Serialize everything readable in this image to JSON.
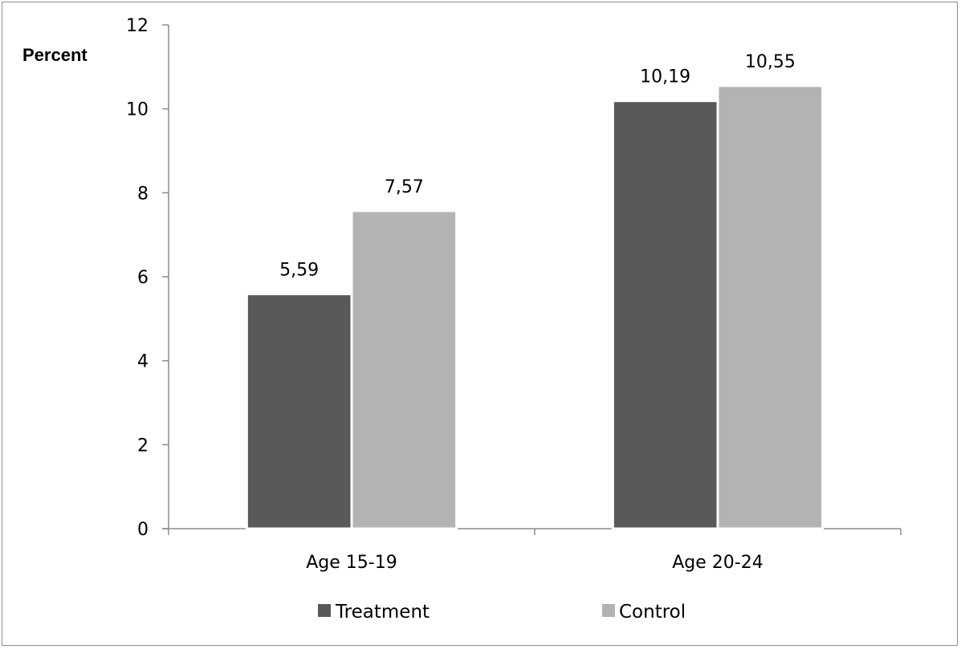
{
  "chart_data": {
    "type": "bar",
    "title": "",
    "xlabel": "",
    "ylabel": "Percent",
    "categories": [
      "Age 15-19",
      "Age 20-24"
    ],
    "series": [
      {
        "name": "Treatment",
        "color": "#595959",
        "values": [
          5.59,
          10.19
        ],
        "labels": [
          "5,59",
          "10,19"
        ]
      },
      {
        "name": "Control",
        "color": "#b3b3b3",
        "values": [
          7.57,
          10.55
        ],
        "labels": [
          "7,57",
          "10,55"
        ]
      }
    ],
    "ylim": [
      0,
      12
    ],
    "yticks": [
      0,
      2,
      4,
      6,
      8,
      10,
      12
    ],
    "grid": false,
    "legend_position": "bottom"
  }
}
